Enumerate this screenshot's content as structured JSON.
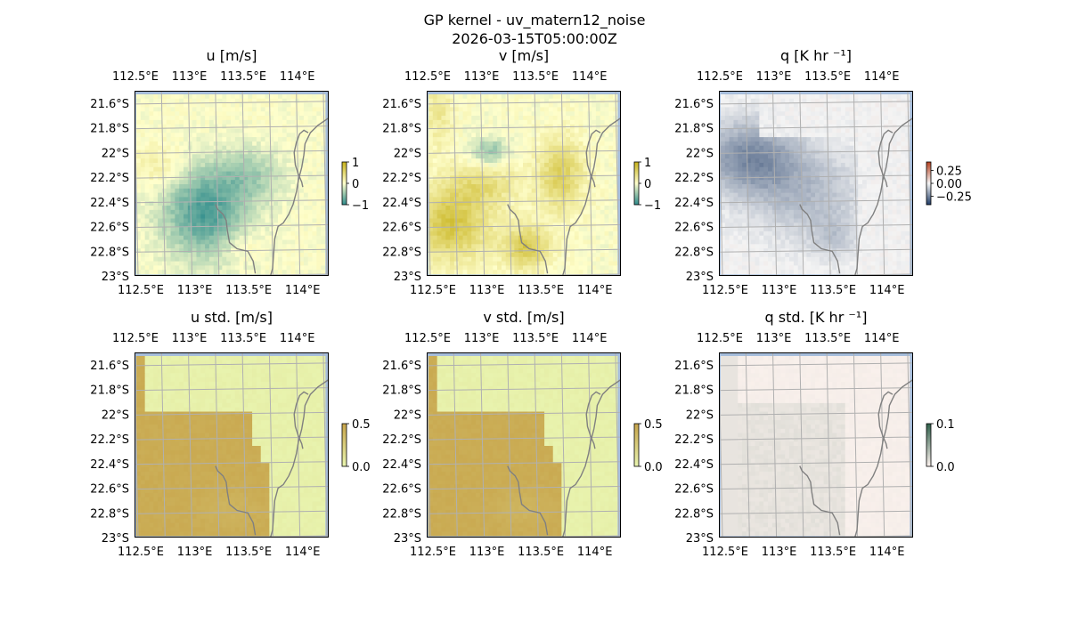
{
  "figure": {
    "title_line1": "GP kernel - uv_matern12_noise",
    "title_line2": "2026-03-15T05:00:00Z"
  },
  "chart_data": [
    {
      "type": "heatmap",
      "panel": "u",
      "title": "u [m/s]",
      "x_ticks": [
        "112.5°E",
        "113°E",
        "113.5°E",
        "114°E"
      ],
      "y_ticks": [
        "21.6°S",
        "21.8°S",
        "22°S",
        "22.2°S",
        "22.4°S",
        "22.6°S",
        "22.8°S",
        "23°S"
      ],
      "x_range": [
        112.5,
        114.3
      ],
      "y_range": [
        -23.0,
        -21.5
      ],
      "colorbar": {
        "ticks": [
          "1",
          "0",
          "−1"
        ],
        "range": [
          -1,
          1
        ],
        "colors": [
          "#2e8c8c",
          "#ffffcc",
          "#c7b21a"
        ]
      },
      "field": "u_mean"
    },
    {
      "type": "heatmap",
      "panel": "v",
      "title": "v [m/s]",
      "x_ticks": [
        "112.5°E",
        "113°E",
        "113.5°E",
        "114°E"
      ],
      "y_ticks": [
        "21.6°S",
        "21.8°S",
        "22°S",
        "22.2°S",
        "22.4°S",
        "22.6°S",
        "22.8°S",
        "23°S"
      ],
      "x_range": [
        112.5,
        114.3
      ],
      "y_range": [
        -23.0,
        -21.5
      ],
      "colorbar": {
        "ticks": [
          "1",
          "0",
          "−1"
        ],
        "range": [
          -1,
          1
        ],
        "colors": [
          "#2e8c8c",
          "#ffffcc",
          "#c7b21a"
        ]
      },
      "field": "v_mean"
    },
    {
      "type": "heatmap",
      "panel": "q",
      "title": "q [K hr ⁻¹]",
      "x_ticks": [
        "112.5°E",
        "113°E",
        "113.5°E",
        "114°E"
      ],
      "y_ticks": [
        "21.6°S",
        "21.8°S",
        "22°S",
        "22.2°S",
        "22.4°S",
        "22.6°S",
        "22.8°S",
        "23°S"
      ],
      "x_range": [
        112.5,
        114.3
      ],
      "y_range": [
        -23.0,
        -21.5
      ],
      "colorbar": {
        "ticks": [
          "0.25",
          "0.00",
          "−0.25"
        ],
        "range": [
          -0.4,
          0.4
        ],
        "colors": [
          "#1f3b66",
          "#f4f4f4",
          "#b5401f"
        ]
      },
      "field": "q_mean"
    },
    {
      "type": "heatmap",
      "panel": "u_std",
      "title": "u std. [m/s]",
      "x_ticks": [
        "112.5°E",
        "113°E",
        "113.5°E",
        "114°E"
      ],
      "y_ticks": [
        "21.6°S",
        "21.8°S",
        "22°S",
        "22.2°S",
        "22.4°S",
        "22.6°S",
        "22.8°S",
        "23°S"
      ],
      "x_range": [
        112.5,
        114.3
      ],
      "y_range": [
        -23.0,
        -21.5
      ],
      "colorbar": {
        "ticks": [
          "0.5",
          "0.0"
        ],
        "range": [
          0,
          0.5
        ],
        "colors": [
          "#e9f5b0",
          "#c7a44a"
        ]
      },
      "field": "u_std"
    },
    {
      "type": "heatmap",
      "panel": "v_std",
      "title": "v std. [m/s]",
      "x_ticks": [
        "112.5°E",
        "113°E",
        "113.5°E",
        "114°E"
      ],
      "y_ticks": [
        "21.6°S",
        "21.8°S",
        "22°S",
        "22.2°S",
        "22.4°S",
        "22.6°S",
        "22.8°S",
        "23°S"
      ],
      "x_range": [
        112.5,
        114.3
      ],
      "y_range": [
        -23.0,
        -21.5
      ],
      "colorbar": {
        "ticks": [
          "0.5",
          "0.0"
        ],
        "range": [
          0,
          0.5
        ],
        "colors": [
          "#e9f5b0",
          "#c7a44a"
        ]
      },
      "field": "v_std"
    },
    {
      "type": "heatmap",
      "panel": "q_std",
      "title": "q std. [K hr ⁻¹]",
      "x_ticks": [
        "112.5°E",
        "113°E",
        "113.5°E",
        "114°E"
      ],
      "y_ticks": [
        "21.6°S",
        "21.8°S",
        "22°S",
        "22.2°S",
        "22.4°S",
        "22.6°S",
        "22.8°S",
        "23°S"
      ],
      "x_range": [
        112.5,
        114.3
      ],
      "y_range": [
        -23.0,
        -21.5
      ],
      "colorbar": {
        "ticks": [
          "0.1",
          "0.0"
        ],
        "range": [
          0,
          0.1
        ],
        "colors": [
          "#fdf3ef",
          "#2f5f4a"
        ]
      },
      "field": "q_std"
    }
  ],
  "colors": {
    "ocean": "#a6bddb",
    "grid": "#b0b0b0",
    "coastline": "#808080"
  }
}
